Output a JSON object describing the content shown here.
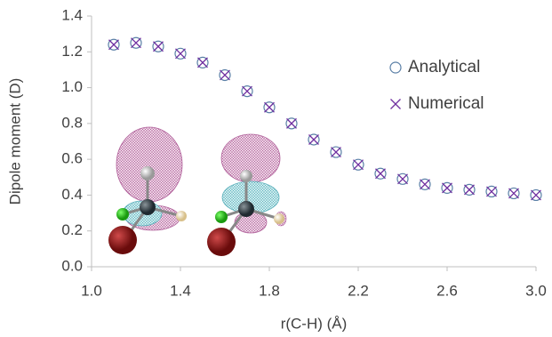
{
  "chart_data": {
    "type": "scatter",
    "x_label": "r(C-H) (Å)",
    "y_label": "Dipole moment (D)",
    "x": [
      1.1,
      1.2,
      1.3,
      1.4,
      1.5,
      1.6,
      1.7,
      1.8,
      1.9,
      2.0,
      2.1,
      2.2,
      2.3,
      2.4,
      2.5,
      2.6,
      2.7,
      2.8,
      2.9,
      3.0
    ],
    "series": [
      {
        "name": "Analytical",
        "marker": "circle",
        "color": "#5a7fa6",
        "values": [
          1.24,
          1.25,
          1.23,
          1.19,
          1.14,
          1.07,
          0.98,
          0.89,
          0.8,
          0.71,
          0.64,
          0.57,
          0.52,
          0.49,
          0.46,
          0.44,
          0.43,
          0.42,
          0.41,
          0.4
        ]
      },
      {
        "name": "Numerical",
        "marker": "x",
        "color": "#7030a0",
        "values": [
          1.24,
          1.25,
          1.23,
          1.19,
          1.14,
          1.07,
          0.98,
          0.89,
          0.8,
          0.71,
          0.64,
          0.57,
          0.52,
          0.49,
          0.46,
          0.44,
          0.43,
          0.42,
          0.41,
          0.4
        ]
      }
    ],
    "xlim": [
      1.0,
      3.0
    ],
    "xticks": [
      {
        "value": 1,
        "label": "1.0"
      },
      1.4,
      1.8,
      2.2,
      2.6,
      {
        "value": 3,
        "label": "3.0"
      }
    ],
    "ylim": [
      0,
      1.4
    ],
    "yticks": [
      {
        "value": 0,
        "label": "0.0"
      },
      0.2,
      0.4,
      0.6,
      0.8,
      {
        "value": 1,
        "label": "1.0"
      },
      1.2,
      1.4
    ],
    "grid": false,
    "legend": "upper right"
  }
}
